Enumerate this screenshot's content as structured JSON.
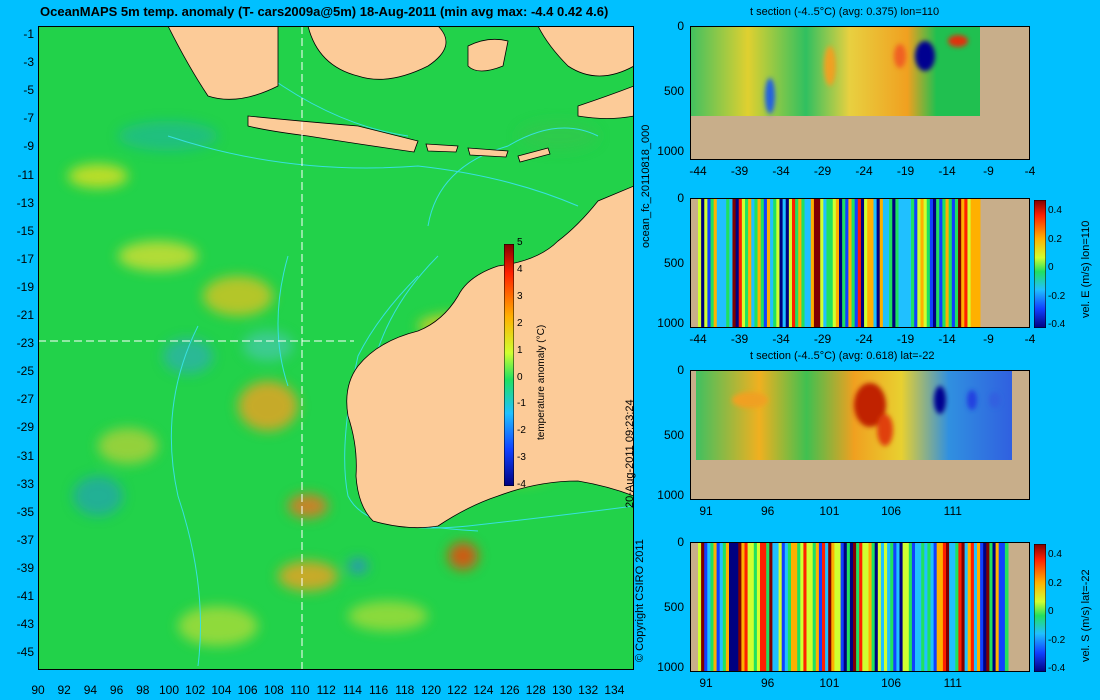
{
  "title": "OceanMAPS 5m temp. anomaly (T- cars2009a@5m) 18-Aug-2011 (min avg max: -4.4 0.42 4.6)",
  "map": {
    "lat_ticks": [
      "-1",
      "-3",
      "-5",
      "-7",
      "-9",
      "-11",
      "-13",
      "-15",
      "-17",
      "-19",
      "-21",
      "-23",
      "-25",
      "-27",
      "-29",
      "-31",
      "-33",
      "-35",
      "-37",
      "-39",
      "-41",
      "-43",
      "-45"
    ],
    "lon_ticks": [
      "90",
      "92",
      "94",
      "96",
      "98",
      "100",
      "102",
      "104",
      "106",
      "108",
      "110",
      "112",
      "114",
      "116",
      "118",
      "120",
      "122",
      "124",
      "126",
      "128",
      "130",
      "132",
      "134"
    ],
    "crosshair": {
      "lon": 110,
      "lat": -22
    },
    "colorbar": {
      "label": "temperature anomaly (°C)",
      "ticks": [
        "5",
        "4",
        "3",
        "2",
        "1",
        "0",
        "-1",
        "-2",
        "-3",
        "-4"
      ]
    }
  },
  "side_text": {
    "run_id": "ocean_fc_20110818_000",
    "timestamp": "20-Aug-2011 09:23:24",
    "copyright": "© Copyright CSIRO 2011"
  },
  "panels": [
    {
      "title": "t section (-4..5°C) (avg: 0.375) lon=110",
      "x_ticks": [
        "-44",
        "-39",
        "-34",
        "-29",
        "-24",
        "-19",
        "-14",
        "-9",
        "-4"
      ],
      "y_ticks": [
        "0",
        "500",
        "1000"
      ],
      "cb_label": "",
      "cb_ticks": []
    },
    {
      "title": "",
      "x_ticks": [
        "-44",
        "-39",
        "-34",
        "-29",
        "-24",
        "-19",
        "-14",
        "-9",
        "-4"
      ],
      "y_ticks": [
        "0",
        "500",
        "1000"
      ],
      "cb_label": "vel. E (m/s) lon=110",
      "cb_ticks": [
        "0.4",
        "0.2",
        "0",
        "-0.2",
        "-0.4"
      ]
    },
    {
      "title": "t section (-4..5°C) (avg: 0.618) lat=-22",
      "x_ticks": [
        "91",
        "96",
        "101",
        "106",
        "111"
      ],
      "y_ticks": [
        "0",
        "500",
        "1000"
      ],
      "cb_label": "",
      "cb_ticks": []
    },
    {
      "title": "",
      "x_ticks": [
        "91",
        "96",
        "101",
        "106",
        "111"
      ],
      "y_ticks": [
        "0",
        "500",
        "1000"
      ],
      "cb_label": "vel. S (m/s) lat=-22",
      "cb_ticks": [
        "0.4",
        "0.2",
        "0",
        "-0.2",
        "-0.4"
      ]
    }
  ],
  "colors": {
    "background": "#00c0ff",
    "ocean_base": "#22d24a",
    "land": "#fccb98",
    "bottom": "#c8ae8a",
    "bathy_contour": "#38e0e0",
    "crosshair": "#ffffff"
  }
}
